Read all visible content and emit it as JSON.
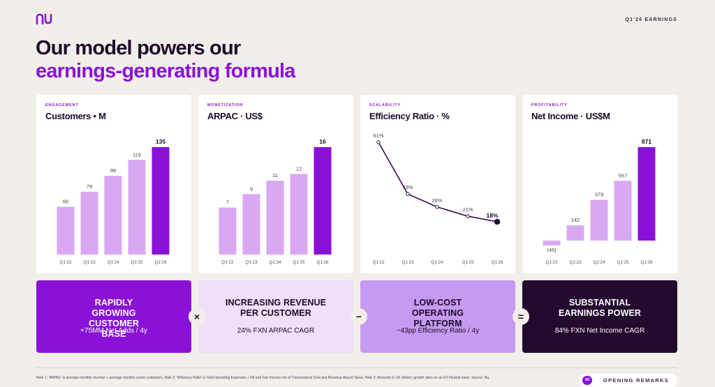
{
  "header": {
    "brand": "nu",
    "earnings_tag": "Q1'26 EARNINGS",
    "headline_line1": "Our model powers our",
    "headline_line2": "earnings-generating formula"
  },
  "colors": {
    "purple": "#8a12d8",
    "light_purple": "#d9a8f2",
    "dark": "#1e0a2a",
    "background": "#f2eee9"
  },
  "chart_data": [
    {
      "type": "bar",
      "eyebrow": "ENGAGEMENT",
      "title": "Customers • M",
      "categories": [
        "Q1'22",
        "Q1'23",
        "Q1'24",
        "Q1'25",
        "Q1'26"
      ],
      "values": [
        60,
        79,
        99,
        119,
        135
      ],
      "value_labels": [
        "60",
        "79",
        "99",
        "119",
        "135"
      ],
      "highlight_last": true
    },
    {
      "type": "bar",
      "eyebrow": "MONETIZATION",
      "title": "ARPAC · US$",
      "categories": [
        "Q1'22",
        "Q1'23",
        "Q1'24",
        "Q1'25",
        "Q1'26"
      ],
      "values": [
        7,
        9,
        11,
        12,
        16
      ],
      "value_labels": [
        "7",
        "9",
        "11",
        "12",
        "16"
      ],
      "highlight_last": true
    },
    {
      "type": "line",
      "eyebrow": "SCALABILITY",
      "title": "Efficiency Ratio · %",
      "categories": [
        "Q1'22",
        "Q1'23",
        "Q1'24",
        "Q1'25",
        "Q1'26"
      ],
      "values": [
        61,
        33,
        26,
        21,
        18
      ],
      "value_labels": [
        "61%",
        "33%",
        "26%",
        "21%",
        "18%"
      ],
      "highlight_last": true
    },
    {
      "type": "bar",
      "eyebrow": "PROFITABILITY",
      "title": "Net Income · US$M",
      "categories": [
        "Q1'22",
        "Q1'23",
        "Q1'24",
        "Q1'25",
        "Q1'26"
      ],
      "values": [
        -45,
        142,
        379,
        557,
        871
      ],
      "value_labels": [
        "(45)",
        "142",
        "379",
        "557",
        "871"
      ],
      "highlight_last": true
    }
  ],
  "pillars": [
    {
      "title": "RAPIDLY GROWING CUSTOMER BASE",
      "subtitle": "+75MM Net Adds / 4y"
    },
    {
      "title": "INCREASING REVENUE PER CUSTOMER",
      "subtitle": "24% FXN ARPAC CAGR"
    },
    {
      "title": "LOW-COST OPERATING PLATFORM",
      "subtitle": "~43pp Efficiency Ratio / 4y"
    },
    {
      "title": "SUBSTANTIAL EARNINGS POWER",
      "subtitle": "84% FXN Net Income CAGR"
    }
  ],
  "operators": [
    "×",
    "−",
    "="
  ],
  "footer": {
    "note": "Note 1: 'ARPAC' is average monthly revenue ÷ average monthly active customers. Note 2: 'Efficiency Ratio' is Total Operating Expenses ÷ NII and Fee Income net of Transactional Cost and Revenue-Based Taxes. Note 3: Amounts in US dollars; growth rates on an FX-Neutral basis. Source: Nu.",
    "page_number": "06",
    "section": "OPENING REMARKS"
  }
}
